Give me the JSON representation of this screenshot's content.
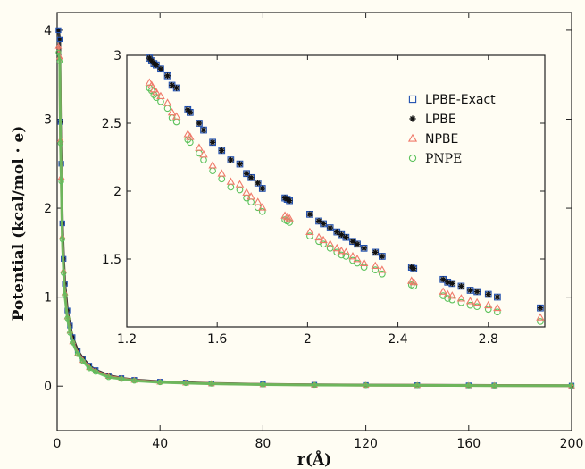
{
  "chart_data": [
    {
      "type": "scatter",
      "title": "",
      "xlabel": "r(Å)",
      "ylabel": "Potential (kcal/mol · e)",
      "xlim": [
        0,
        200
      ],
      "ylim": [
        -0.5,
        4.2
      ],
      "xticks": [
        0,
        40,
        80,
        120,
        160,
        200
      ],
      "yticks": [
        0,
        1,
        2,
        3,
        4
      ],
      "series": [
        {
          "name": "LPBE-Exact",
          "color": "#1f4fb0",
          "marker": "square"
        },
        {
          "name": "LPBE",
          "color": "#111111",
          "marker": "star"
        },
        {
          "name": "NPBE",
          "color": "#f07a6a",
          "marker": "triangle"
        },
        {
          "name": "PNPE",
          "color": "#5cc25c",
          "marker": "circle"
        }
      ],
      "x": [
        0.5,
        1.0,
        1.3,
        1.6,
        2.0,
        2.5,
        3.0,
        4.0,
        5.0,
        6.0,
        8.0,
        10.0,
        12.5,
        15.0,
        20.0,
        25.0,
        30.0,
        40.0,
        50.0,
        60.0,
        80.0,
        100.0,
        120.0,
        140.0,
        160.0,
        170.0,
        200.0
      ],
      "lpbe_values": [
        4.0,
        3.9,
        2.97,
        2.5,
        1.83,
        1.43,
        1.15,
        0.85,
        0.68,
        0.55,
        0.4,
        0.31,
        0.23,
        0.18,
        0.12,
        0.09,
        0.07,
        0.05,
        0.04,
        0.03,
        0.02,
        0.015,
        0.012,
        0.01,
        0.008,
        0.007,
        0.005
      ],
      "npbe_values": [
        3.82,
        3.7,
        2.77,
        2.35,
        1.68,
        1.3,
        1.05,
        0.78,
        0.62,
        0.5,
        0.37,
        0.29,
        0.21,
        0.17,
        0.11,
        0.085,
        0.065,
        0.045,
        0.035,
        0.028,
        0.018,
        0.013,
        0.01,
        0.009,
        0.007,
        0.006,
        0.004
      ],
      "pnpe_values": [
        3.75,
        3.65,
        2.73,
        2.3,
        1.65,
        1.27,
        1.02,
        0.76,
        0.6,
        0.49,
        0.36,
        0.28,
        0.2,
        0.16,
        0.1,
        0.08,
        0.06,
        0.042,
        0.033,
        0.026,
        0.017,
        0.012,
        0.009,
        0.008,
        0.006,
        0.005,
        0.004
      ]
    },
    {
      "type": "scatter",
      "title": "",
      "xlabel": "",
      "ylabel": "",
      "xlim": [
        1.2,
        3.05
      ],
      "ylim": [
        1.0,
        3.0
      ],
      "xticks": [
        "1.2",
        "1.6",
        "2",
        "2.4",
        "2.8"
      ],
      "yticks": [
        "1.5",
        "2",
        "2.5",
        "3"
      ],
      "legend_position": "top-right",
      "legend": [
        "LPBE-Exact",
        "LPBE",
        "NPBE",
        "PNPE"
      ],
      "x": [
        1.3,
        1.31,
        1.32,
        1.33,
        1.35,
        1.38,
        1.4,
        1.42,
        1.47,
        1.48,
        1.52,
        1.54,
        1.58,
        1.62,
        1.66,
        1.7,
        1.73,
        1.75,
        1.78,
        1.8,
        1.9,
        1.91,
        1.92,
        2.01,
        2.05,
        2.07,
        2.1,
        2.13,
        2.15,
        2.17,
        2.2,
        2.22,
        2.25,
        2.3,
        2.33,
        2.46,
        2.47,
        2.6,
        2.62,
        2.64,
        2.68,
        2.72,
        2.75,
        2.8,
        2.84,
        3.03
      ],
      "series": [
        {
          "name": "LPBE-Exact",
          "color": "#1f4fb0",
          "marker": "square",
          "values": [
            2.98,
            2.96,
            2.94,
            2.93,
            2.9,
            2.85,
            2.78,
            2.76,
            2.6,
            2.58,
            2.5,
            2.45,
            2.36,
            2.3,
            2.23,
            2.2,
            2.13,
            2.1,
            2.06,
            2.02,
            1.95,
            1.94,
            1.93,
            1.83,
            1.78,
            1.76,
            1.73,
            1.7,
            1.68,
            1.66,
            1.63,
            1.61,
            1.58,
            1.55,
            1.52,
            1.44,
            1.43,
            1.35,
            1.33,
            1.32,
            1.3,
            1.27,
            1.26,
            1.24,
            1.22,
            1.14
          ]
        },
        {
          "name": "LPBE",
          "color": "#111111",
          "marker": "star",
          "values": [
            2.98,
            2.96,
            2.94,
            2.93,
            2.9,
            2.85,
            2.78,
            2.76,
            2.6,
            2.58,
            2.5,
            2.45,
            2.36,
            2.3,
            2.23,
            2.2,
            2.13,
            2.1,
            2.06,
            2.02,
            1.95,
            1.94,
            1.93,
            1.83,
            1.78,
            1.76,
            1.73,
            1.7,
            1.68,
            1.66,
            1.63,
            1.61,
            1.58,
            1.55,
            1.52,
            1.44,
            1.43,
            1.35,
            1.33,
            1.32,
            1.3,
            1.27,
            1.26,
            1.24,
            1.22,
            1.14
          ]
        },
        {
          "name": "NPBE",
          "color": "#f07a6a",
          "marker": "triangle",
          "values": [
            2.8,
            2.78,
            2.75,
            2.73,
            2.7,
            2.65,
            2.58,
            2.55,
            2.42,
            2.4,
            2.32,
            2.27,
            2.19,
            2.13,
            2.07,
            2.05,
            1.99,
            1.96,
            1.92,
            1.88,
            1.82,
            1.81,
            1.8,
            1.7,
            1.66,
            1.64,
            1.61,
            1.58,
            1.56,
            1.55,
            1.52,
            1.5,
            1.47,
            1.45,
            1.42,
            1.34,
            1.33,
            1.26,
            1.24,
            1.23,
            1.21,
            1.19,
            1.18,
            1.16,
            1.14,
            1.07
          ]
        },
        {
          "name": "PNPE",
          "color": "#5cc25c",
          "marker": "circle",
          "values": [
            2.76,
            2.74,
            2.71,
            2.69,
            2.66,
            2.61,
            2.54,
            2.51,
            2.38,
            2.36,
            2.28,
            2.23,
            2.15,
            2.09,
            2.03,
            2.01,
            1.95,
            1.92,
            1.88,
            1.85,
            1.79,
            1.78,
            1.77,
            1.67,
            1.63,
            1.61,
            1.58,
            1.55,
            1.53,
            1.52,
            1.49,
            1.47,
            1.44,
            1.42,
            1.39,
            1.31,
            1.3,
            1.23,
            1.21,
            1.2,
            1.18,
            1.16,
            1.15,
            1.13,
            1.11,
            1.04
          ]
        }
      ]
    }
  ]
}
